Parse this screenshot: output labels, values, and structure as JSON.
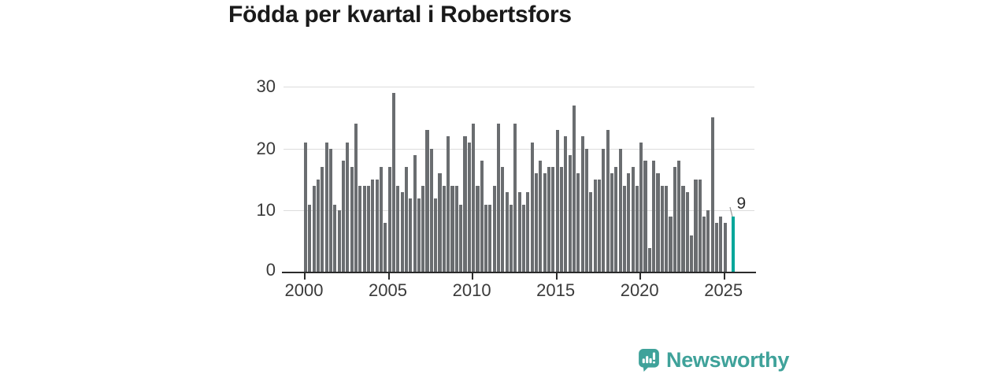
{
  "title": "Födda per kvartal i Robertsfors",
  "y_axis": {
    "tick_labels": [
      "0",
      "10",
      "20",
      "30"
    ],
    "tick_values": [
      0,
      10,
      20,
      30
    ]
  },
  "x_axis": {
    "tick_labels": [
      "2000",
      "2005",
      "2010",
      "2015",
      "2020",
      "2025"
    ]
  },
  "annotation": {
    "label": "9"
  },
  "logo": {
    "text": "Newsworthy",
    "icon": "newsworthy-chart-bubble-icon"
  },
  "colors": {
    "bar": "#6a6d70",
    "highlight": "#00a69a",
    "grid": "#dcdcdc",
    "axis": "#2b2b2b",
    "text": "#3a3a3a",
    "title": "#1a1a1a",
    "logo": "#3fa29a"
  },
  "chart_data": {
    "type": "bar",
    "title": "Födda per kvartal i Robertsfors",
    "frequency": "quarterly",
    "start": "2000-Q1",
    "end": "2025-Q1",
    "values": [
      21,
      11,
      14,
      15,
      17,
      21,
      20,
      11,
      10,
      18,
      21,
      17,
      24,
      14,
      14,
      14,
      15,
      15,
      17,
      8,
      17,
      29,
      14,
      13,
      17,
      12,
      19,
      12,
      14,
      23,
      20,
      12,
      16,
      14,
      22,
      14,
      14,
      11,
      22,
      21,
      24,
      14,
      18,
      11,
      11,
      14,
      24,
      17,
      13,
      11,
      24,
      13,
      11,
      13,
      21,
      16,
      18,
      16,
      17,
      17,
      23,
      17,
      22,
      19,
      27,
      16,
      22,
      20,
      13,
      15,
      15,
      20,
      23,
      16,
      17,
      20,
      14,
      16,
      17,
      14,
      21,
      18,
      4,
      18,
      16,
      14,
      14,
      9,
      17,
      18,
      14,
      13,
      6,
      15,
      15,
      9,
      10,
      25,
      8,
      9,
      8
    ],
    "gap_slots_after_values": 1,
    "highlight": {
      "period": "2025-Q3",
      "value": 9,
      "label": "9"
    },
    "ylim": [
      0,
      30
    ],
    "grid": "horizontal",
    "x_tick_years": [
      2000,
      2005,
      2010,
      2015,
      2020,
      2025
    ],
    "legend": "none"
  }
}
